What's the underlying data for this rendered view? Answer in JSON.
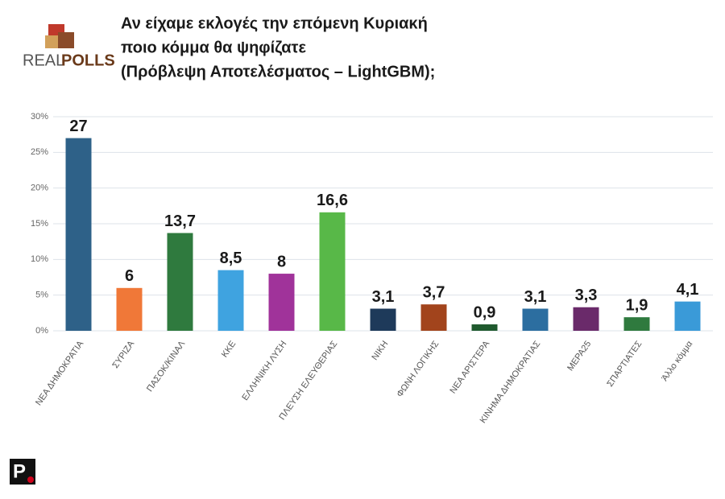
{
  "logo": {
    "part1": "REAL",
    "part2": "POLLS"
  },
  "brand_mark": "P",
  "chart_data": {
    "type": "bar",
    "title": [
      "Αν είχαμε εκλογές την επόμενη Κυριακή",
      "ποιο κόμμα θα ψηφίζατε",
      "(Πρόβλεψη Αποτελέσματος – LightGBM);"
    ],
    "categories": [
      "ΝΕΑ ΔΗΜΟΚΡΑΤΙΑ",
      "ΣΥΡΙΖΑ",
      "ΠΑΣΟΚ/ΚΙΝΑΛ",
      "ΚΚΕ",
      "ΕΛΛΗΝΙΚΗ ΛΥΣΗ",
      "ΠΛΕΥΣΗ ΕΛΕΥΘΕΡΙΑΣ",
      "ΝΙΚΗ",
      "ΦΩΝΗ ΛΟΓΙΚΗΣ",
      "ΝΕΑ ΑΡΙΣΤΕΡΑ",
      "ΚΙΝΗΜΑ ΔΗΜΟΚΡΑΤΙΑΣ",
      "ΜΕΡΑ25",
      "ΣΠΑΡΤΙΑΤΕΣ",
      "Άλλο κόμμα"
    ],
    "values": [
      27,
      6,
      13.7,
      8.5,
      8,
      16.6,
      3.1,
      3.7,
      0.9,
      3.1,
      3.3,
      1.9,
      4.1
    ],
    "value_labels": [
      "27",
      "6",
      "13,7",
      "8,5",
      "8",
      "16,6",
      "3,1",
      "3,7",
      "0,9",
      "3,1",
      "3,3",
      "1,9",
      "4,1"
    ],
    "colors": [
      "#2e6188",
      "#f07838",
      "#2f7a3e",
      "#3fa3e0",
      "#a0339a",
      "#58b848",
      "#1e3a5a",
      "#a2441c",
      "#1f5a2e",
      "#2c6ea0",
      "#6a2a6a",
      "#2f7a3e",
      "#3a9ad8"
    ],
    "ylim": [
      0,
      30
    ],
    "yticks": [
      {
        "value": 0,
        "label": "0%"
      },
      {
        "value": 5,
        "label": "5%"
      },
      {
        "value": 10,
        "label": "10%"
      },
      {
        "value": 15,
        "label": "15%"
      },
      {
        "value": 20,
        "label": "20%"
      },
      {
        "value": 25,
        "label": "25%"
      },
      {
        "value": 30,
        "label": "30%"
      }
    ],
    "grid": true
  }
}
